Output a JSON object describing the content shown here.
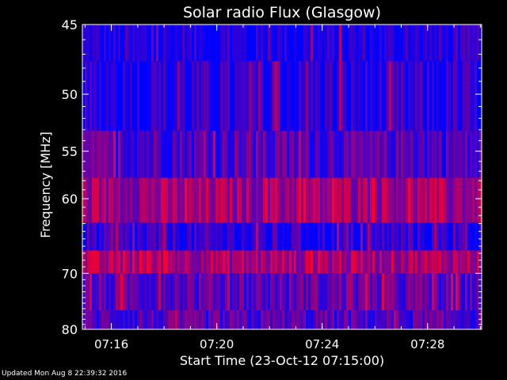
{
  "chart_data": {
    "type": "heatmap",
    "title": "Solar radio Flux (Glasgow)",
    "xlabel": "Start Time (23-Oct-12 07:15:00)",
    "ylabel": "Frequency [MHz]",
    "x_ticks": [
      {
        "label": "07:16",
        "minute": 16
      },
      {
        "label": "07:20",
        "minute": 20
      },
      {
        "label": "07:24",
        "minute": 24
      },
      {
        "label": "07:28",
        "minute": 28
      }
    ],
    "x_range_minutes": [
      14.9,
      30.05
    ],
    "y_ticks": [
      45,
      50,
      55,
      60,
      70,
      80
    ],
    "ylim_mhz": [
      45,
      80
    ],
    "y_scale": "reciprocal",
    "colors": {
      "background": "#000000",
      "axis": "#ffffff",
      "low_intensity": "#0000ff",
      "high_intensity": "#ff0000"
    },
    "bands": [
      {
        "f_low": 45,
        "f_high": 47.5,
        "intensity": 0.08
      },
      {
        "f_low": 47.5,
        "f_high": 53.1,
        "intensity": 0.12
      },
      {
        "f_low": 53.1,
        "f_high": 57.7,
        "intensity": 0.3
      },
      {
        "f_low": 57.7,
        "f_high": 62.9,
        "intensity": 0.6
      },
      {
        "f_low": 62.9,
        "f_high": 66.6,
        "intensity": 0.15
      },
      {
        "f_low": 66.6,
        "f_high": 70.0,
        "intensity": 0.65
      },
      {
        "f_low": 70.0,
        "f_high": 76.3,
        "intensity": 0.35
      },
      {
        "f_low": 76.3,
        "f_high": 80,
        "intensity": 0.3
      }
    ]
  },
  "footer": {
    "updated": "Updated Mon Aug  8 22:39:32 2016"
  }
}
